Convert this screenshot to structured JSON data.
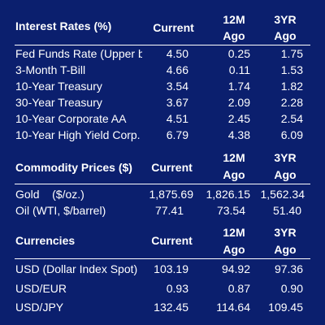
{
  "sections": [
    {
      "title": "Interest Rates (%)",
      "col_current": "Current",
      "col_12m_line1": "12M",
      "col_12m_line2": "Ago",
      "col_3yr_line1": "3YR",
      "col_3yr_line2": "Ago",
      "rows": [
        {
          "label": "Fed Funds Rate (Upper b",
          "current": "4.50",
          "m12": "0.25",
          "y3": "1.75"
        },
        {
          "label": "3-Month T-Bill",
          "current": "4.66",
          "m12": "0.11",
          "y3": "1.53"
        },
        {
          "label": "10-Year Treasury",
          "current": "3.54",
          "m12": "1.74",
          "y3": "1.82"
        },
        {
          "label": "30-Year Treasury",
          "current": "3.67",
          "m12": "2.09",
          "y3": "2.28"
        },
        {
          "label": "10-Year Corporate AA",
          "current": "4.51",
          "m12": "2.45",
          "y3": "2.54"
        },
        {
          "label": "10-Year High Yield Corp.",
          "current": "6.79",
          "m12": "4.38",
          "y3": "6.09"
        }
      ]
    },
    {
      "title": "Commodity Prices ($)",
      "col_current": "Current",
      "col_12m_line1": "12M",
      "col_12m_line2": "Ago",
      "col_3yr_line1": "3YR",
      "col_3yr_line2": "Ago",
      "rows": [
        {
          "label": "Gold    ($/oz.)",
          "current": "1,875.69",
          "m12": "1,826.15",
          "y3": "1,562.34"
        },
        {
          "label": "Oil (WTI, $/barrel)",
          "current": "77.41",
          "m12": "73.54",
          "y3": "51.40"
        }
      ]
    },
    {
      "title": "Currencies",
      "col_current": "Current",
      "col_12m_line1": "12M",
      "col_12m_line2": "Ago",
      "col_3yr_line1": "3YR",
      "col_3yr_line2": "Ago",
      "rows": [
        {
          "label": "USD (Dollar Index Spot)",
          "current": "103.19",
          "m12": "94.92",
          "y3": "97.36"
        },
        {
          "label": "USD/EUR",
          "current": "0.93",
          "m12": "0.87",
          "y3": "0.90"
        },
        {
          "label": "USD/JPY",
          "current": "132.45",
          "m12": "114.64",
          "y3": "109.45"
        }
      ]
    }
  ],
  "colors": {
    "background": "#0b1f6e",
    "text": "#ffffff"
  }
}
